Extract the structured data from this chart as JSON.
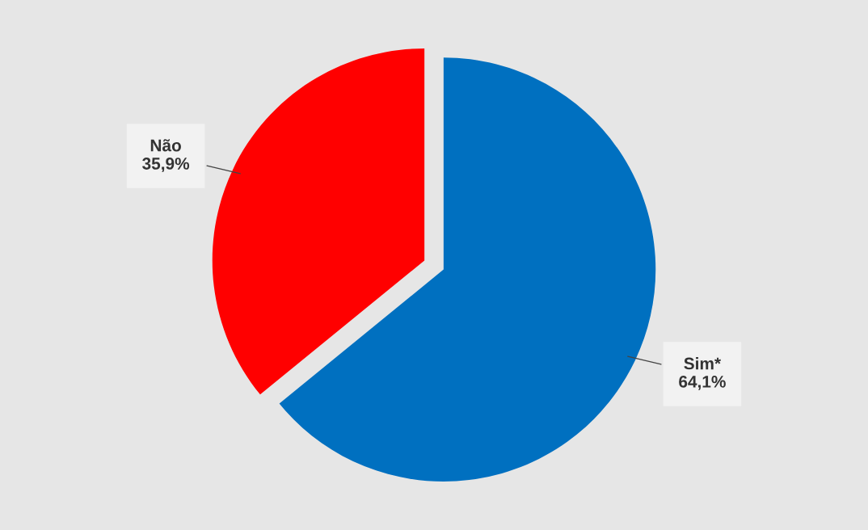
{
  "chart_data": {
    "type": "pie",
    "categories": [
      "Sim*",
      "Não"
    ],
    "values": [
      64.1,
      35.9
    ],
    "value_labels": [
      "64,1%",
      "35,9%"
    ],
    "colors": [
      "#0070c0",
      "#ff0000"
    ]
  }
}
